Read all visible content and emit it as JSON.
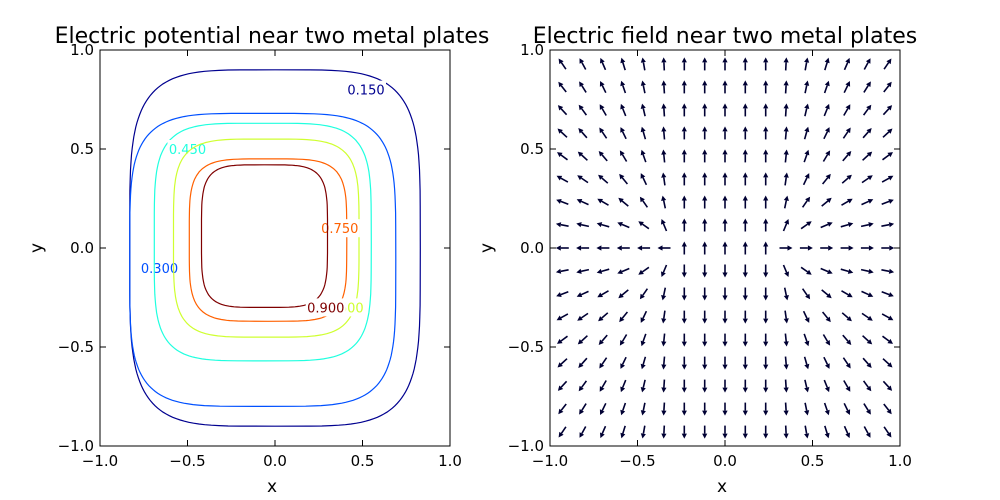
{
  "chart_data": [
    {
      "type": "contour",
      "title": "Electric potential near two metal plates",
      "xlabel": "x",
      "ylabel": "y",
      "xlim": [
        -1.0,
        1.0
      ],
      "ylim": [
        -1.0,
        1.0
      ],
      "xticks": [
        "−1.0",
        "−0.5",
        "0.0",
        "0.5",
        "1.0"
      ],
      "yticks": [
        "−1.0",
        "−0.5",
        "0.0",
        "0.5",
        "1.0"
      ],
      "levels": [
        {
          "value": 0.15,
          "label": "0.150",
          "color": "#00008f",
          "halfwidth": 0.83,
          "halfheight": 0.9,
          "cx": 0.0,
          "cy": 0.0,
          "label_x": 0.52,
          "label_y": 0.8
        },
        {
          "value": 0.3,
          "label": "0.300",
          "color": "#0050ff",
          "halfwidth": 0.76,
          "halfheight": 0.74,
          "cx": -0.07,
          "cy": -0.06,
          "label_x": -0.66,
          "label_y": -0.1
        },
        {
          "value": 0.45,
          "label": "0.450",
          "color": "#20ffdf",
          "halfwidth": 0.62,
          "halfheight": 0.6,
          "cx": -0.07,
          "cy": 0.03,
          "label_x": -0.5,
          "label_y": 0.5
        },
        {
          "value": 0.6,
          "label": "0.600",
          "color": "#cfff30",
          "halfwidth": 0.53,
          "halfheight": 0.5,
          "cx": -0.05,
          "cy": 0.05,
          "label_x": 0.4,
          "label_y": -0.3
        },
        {
          "value": 0.75,
          "label": "0.750",
          "color": "#ff6000",
          "halfwidth": 0.45,
          "halfheight": 0.41,
          "cx": -0.04,
          "cy": 0.04,
          "label_x": 0.37,
          "label_y": 0.1
        },
        {
          "value": 0.9,
          "label": "0.900",
          "color": "#7f0000",
          "halfwidth": 0.36,
          "halfheight": 0.36,
          "cx": -0.06,
          "cy": 0.06,
          "label_x": 0.29,
          "label_y": -0.3
        }
      ]
    },
    {
      "type": "quiver",
      "title": "Electric field near two metal plates",
      "xlabel": "x",
      "ylabel": "y",
      "xlim": [
        -1.0,
        1.0
      ],
      "ylim": [
        -1.0,
        1.0
      ],
      "xticks": [
        "−1.0",
        "−0.5",
        "0.0",
        "0.5",
        "1.0"
      ],
      "yticks": [
        "−1.0",
        "−0.5",
        "0.0",
        "0.5",
        "1.0"
      ],
      "grid_n": 17,
      "grid_range": [
        -0.93,
        0.93
      ],
      "plate_halfwidth": 0.3,
      "arrow_color": "#000033"
    }
  ]
}
